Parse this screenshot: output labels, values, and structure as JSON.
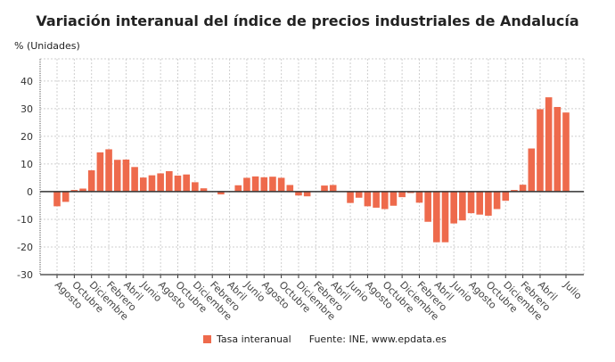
{
  "chart_data": {
    "type": "bar",
    "title": "Variación interanual del índice de precios industriales de Andalucía",
    "ylabel": "% (Unidades)",
    "xlabel": "",
    "ylim": [
      -30,
      48
    ],
    "yticks": [
      40,
      30,
      20,
      10,
      0,
      -10,
      -20,
      -30
    ],
    "grid": true,
    "legend_position": "bottom",
    "bar_color": "#ee6a4c",
    "tick_labels": [
      "Agosto",
      "Octubre",
      "Diciembre",
      "Febrero",
      "Abril",
      "Junio",
      "Agosto",
      "Octubre",
      "Diciembre",
      "Febrero",
      "Abril",
      "Junio",
      "Agosto",
      "Octubre",
      "Diciembre",
      "Febrero",
      "Abril",
      "Junio",
      "Agosto",
      "Octubre",
      "Diciembre",
      "Febrero",
      "Abril",
      "Junio",
      "Agosto",
      "Octubre",
      "Diciembre",
      "Febrero",
      "Abril",
      "Julio"
    ],
    "tick_label_bar_index": [
      0,
      2,
      4,
      6,
      8,
      10,
      12,
      14,
      16,
      18,
      20,
      22,
      24,
      26,
      28,
      30,
      32,
      34,
      36,
      38,
      40,
      42,
      44,
      46,
      48,
      50,
      52,
      54,
      56,
      59
    ],
    "series": [
      {
        "name": "Tasa interanual",
        "values": [
          -5.3,
          -3.7,
          0.6,
          1.1,
          7.7,
          14.2,
          15.3,
          11.5,
          11.6,
          8.9,
          5.1,
          5.9,
          6.6,
          7.4,
          5.8,
          6.2,
          3.4,
          1.2,
          0.1,
          -1.0,
          0.0,
          2.3,
          5.0,
          5.5,
          5.2,
          5.4,
          5.0,
          2.4,
          -1.4,
          -1.7,
          0.0,
          2.2,
          2.4,
          0.0,
          -4.1,
          -2.2,
          -5.3,
          -5.8,
          -6.3,
          -5.1,
          -2.0,
          -0.5,
          -4.0,
          -10.9,
          -18.3,
          -18.3,
          -11.5,
          -10.4,
          -7.8,
          -8.3,
          -8.7,
          -6.3,
          -3.3,
          0.6,
          2.5,
          15.6,
          29.8,
          34.1,
          30.6,
          28.6
        ]
      }
    ],
    "source": "Fuente: INE, www.epdata.es"
  }
}
